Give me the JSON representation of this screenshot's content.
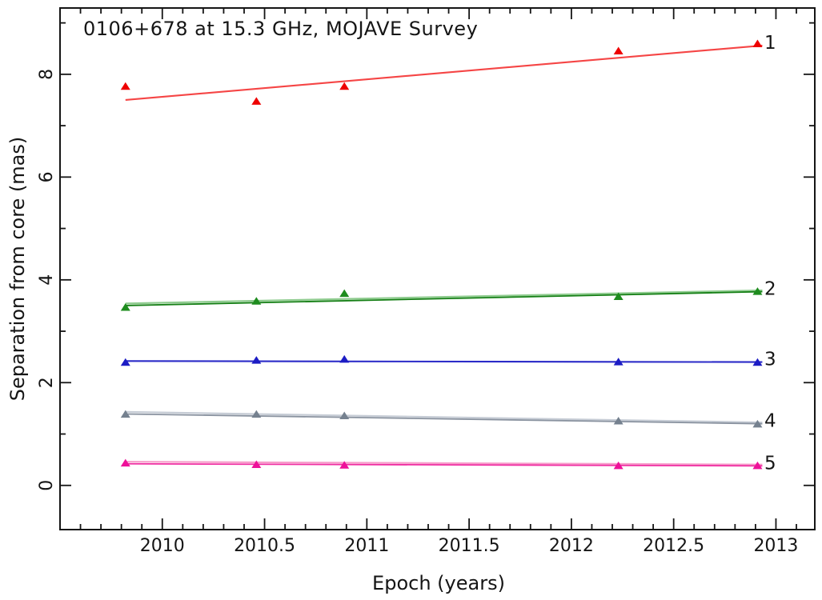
{
  "chart_data": {
    "type": "scatter",
    "title": "0106+678 at 15.3 GHz, MOJAVE Survey",
    "xlabel": "Epoch (years)",
    "ylabel": "Separation from core (mas)",
    "xlim": [
      2009.5,
      2013.19
    ],
    "ylim": [
      -0.86,
      9.29
    ],
    "grid": false,
    "legend_position": "labels-at-right-end-of-each-series",
    "x_major_ticks": [
      2010,
      2010.5,
      2011,
      2011.5,
      2012,
      2012.5,
      2013
    ],
    "x_tick_labels": [
      "2010",
      "2010.5",
      "2011",
      "2011.5",
      "2012",
      "2012.5",
      "2013"
    ],
    "x_minor_tick_step": 0.1,
    "y_major_ticks": [
      0,
      2,
      4,
      6,
      8
    ],
    "y_tick_labels": [
      "0",
      "2",
      "4",
      "6",
      "8"
    ],
    "y_minor_tick_step": 1,
    "epochs": [
      2009.82,
      2010.46,
      2010.89,
      2012.23,
      2012.91
    ],
    "marker_shape": "filled-triangle-up",
    "series": [
      {
        "name": "1",
        "color": "#ee0000",
        "line_color": "#f54545",
        "label_color": "#f56b6b",
        "values": [
          7.76,
          7.47,
          7.76,
          8.45,
          8.59
        ],
        "fit_line": {
          "start": 7.5,
          "end": 8.56
        }
      },
      {
        "name": "2",
        "color": "#1e8c1e",
        "line_color": "#157f15",
        "light_line_color": "#8ecb8e",
        "label_color": "#8cc98c",
        "values": [
          3.46,
          3.58,
          3.73,
          3.67,
          3.77
        ],
        "fit_line": {
          "start": 3.5,
          "end": 3.77
        }
      },
      {
        "name": "3",
        "color": "#1c1cc4",
        "line_color": "#2b2bc8",
        "label_color": "#9191dc",
        "values": [
          2.39,
          2.43,
          2.45,
          2.4,
          2.39
        ],
        "fit_line": {
          "start": 2.42,
          "end": 2.4
        }
      },
      {
        "name": "4",
        "color": "#75818f",
        "line_color": "#8a93a0",
        "light_line_color": "#c6ccd5",
        "label_color": "#c9cfd8",
        "values": [
          1.38,
          1.38,
          1.35,
          1.25,
          1.19
        ],
        "fit_line": {
          "start": 1.39,
          "end": 1.2
        }
      },
      {
        "name": "5",
        "color": "#ee1199",
        "line_color": "#ef2da2",
        "light_line_color": "#f79cca",
        "label_color": "#f584c1",
        "values": [
          0.43,
          0.4,
          0.39,
          0.38,
          0.38
        ],
        "fit_line": {
          "start": 0.42,
          "end": 0.38
        }
      }
    ]
  }
}
